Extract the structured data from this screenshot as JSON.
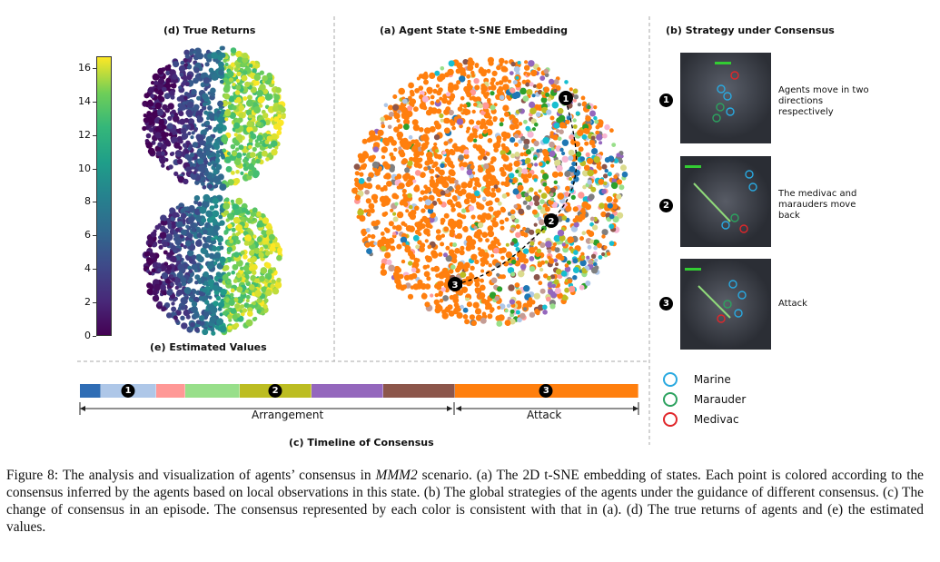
{
  "panels": {
    "true_returns_title": "(d) True Returns",
    "estimated_values_title": "(e) Estimated Values",
    "tsne_title": "(a) Agent State t-SNE Embedding",
    "strategy_title": "(b) Strategy under Consensus",
    "timeline_title": "(c) Timeline of Consensus"
  },
  "colorbar": {
    "ticks": [
      "16",
      "14",
      "12",
      "10",
      "8",
      "6",
      "4",
      "2",
      "0"
    ],
    "colormap": "viridis"
  },
  "strategies": [
    {
      "num": "1",
      "text": "Agents move in two directions respectively"
    },
    {
      "num": "2",
      "text": "The medivac and marauders move back"
    },
    {
      "num": "3",
      "text": "Attack"
    }
  ],
  "legend": [
    {
      "label": "Marine",
      "color": "#29a9e0"
    },
    {
      "label": "Marauder",
      "color": "#2ca25f"
    },
    {
      "label": "Medivac",
      "color": "#e0262a"
    }
  ],
  "timeline": {
    "segments": [
      {
        "color": "#2f6db5",
        "weight": 1.6
      },
      {
        "color": "#aec7e8",
        "weight": 4.3,
        "num": "1"
      },
      {
        "color": "#ff9896",
        "weight": 2.2
      },
      {
        "color": "#98df8a",
        "weight": 4.3
      },
      {
        "color": "#bcbd22",
        "weight": 5.6,
        "num": "2"
      },
      {
        "color": "#9467bd",
        "weight": 5.6
      },
      {
        "color": "#8c564b",
        "weight": 5.6
      },
      {
        "color": "#ff7f0e",
        "weight": 14.5,
        "num": "3"
      }
    ],
    "phase_arrangement": "Arrangement",
    "phase_attack": "Attack"
  },
  "tsne_markers": [
    "1",
    "2",
    "3"
  ],
  "caption": {
    "prefix": "Figure 8: The analysis and visualization of agents’ consensus in ",
    "scenario": "MMM2",
    "rest": " scenario. (a) The 2D t-SNE embedding of states. Each point is colored according to the consensus inferred by the agents based on local observations in this state. (b) The global strategies of the agents under the guidance of different consensus. (c) The change of consensus in an episode. The consensus represented by each color is consistent with that in (a). (d) The true returns of agents and (e) the estimated values."
  }
}
